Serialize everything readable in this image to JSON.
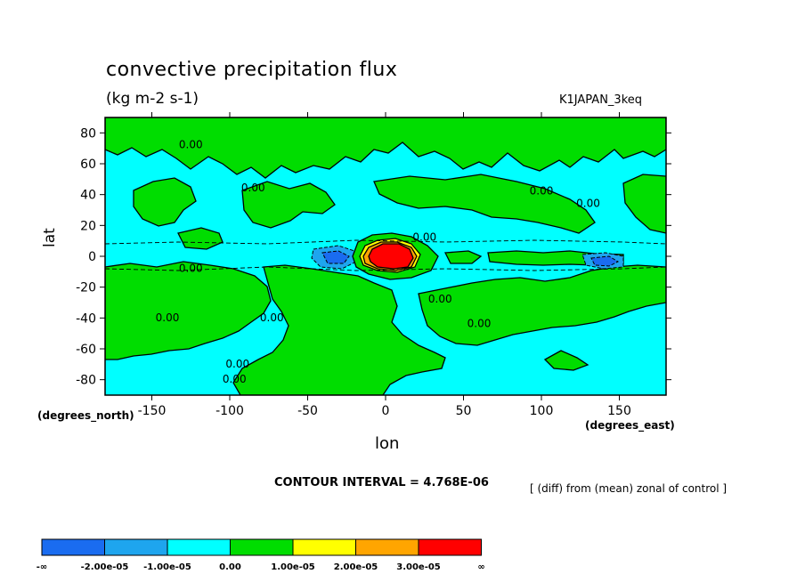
{
  "chart_data": {
    "type": "contour",
    "title": "convective precipitation flux",
    "units": "(kg m-2 s-1)",
    "run_name": "K1JAPAN_3keq",
    "xlabel": "lon",
    "xlabel_units": "(degrees_east)",
    "ylabel": "lat",
    "ylabel_units": "(degrees_north)",
    "xlim": [
      -180,
      180
    ],
    "ylim": [
      -90,
      90
    ],
    "x_ticks": [
      -150,
      -100,
      -50,
      0,
      50,
      100,
      150
    ],
    "y_ticks": [
      80,
      60,
      40,
      20,
      0,
      -20,
      -40,
      -60,
      -80
    ],
    "contour_interval_text": "CONTOUR INTERVAL = 4.768E-06",
    "note": "[ (diff) from (mean) zonal of control ]",
    "contour_labels": [
      "0.00"
    ],
    "colorbar": {
      "boundaries": [
        "-∞",
        "-2.00e-05",
        "-1.00e-05",
        "0.00",
        "1.00e-05",
        "2.00e-05",
        "3.00e-05",
        "∞"
      ],
      "colors": [
        "#1a6cf0",
        "#1ea5ee",
        "#00ffff",
        "#00dd00",
        "#ffff00",
        "#ffa500",
        "#ff0000"
      ]
    },
    "features": [
      {
        "name": "max",
        "lon": 2,
        "lat": 0,
        "level": "> 3.00e-05"
      },
      {
        "name": "min",
        "lon": -35,
        "lat": 0,
        "level": "< -2.00e-05"
      },
      {
        "name": "min",
        "lon": 140,
        "lat": 0,
        "level": "< -2.00e-05"
      }
    ]
  }
}
